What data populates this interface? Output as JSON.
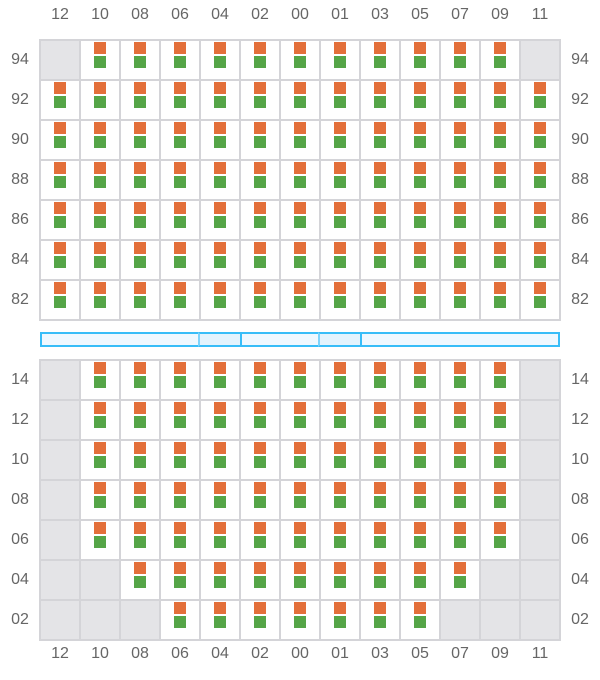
{
  "columns": [
    "12",
    "10",
    "08",
    "06",
    "04",
    "02",
    "00",
    "01",
    "03",
    "05",
    "07",
    "09",
    "11"
  ],
  "colors": {
    "orange": "#e36f3a",
    "green": "#55a547",
    "empty": "#e4e4e7",
    "divider": "#38bdf8"
  },
  "top_section": {
    "rows": [
      {
        "label": "94",
        "available": [
          0,
          1,
          1,
          1,
          1,
          1,
          1,
          1,
          1,
          1,
          1,
          1,
          0
        ]
      },
      {
        "label": "92",
        "available": [
          1,
          1,
          1,
          1,
          1,
          1,
          1,
          1,
          1,
          1,
          1,
          1,
          1
        ]
      },
      {
        "label": "90",
        "available": [
          1,
          1,
          1,
          1,
          1,
          1,
          1,
          1,
          1,
          1,
          1,
          1,
          1
        ]
      },
      {
        "label": "88",
        "available": [
          1,
          1,
          1,
          1,
          1,
          1,
          1,
          1,
          1,
          1,
          1,
          1,
          1
        ]
      },
      {
        "label": "86",
        "available": [
          1,
          1,
          1,
          1,
          1,
          1,
          1,
          1,
          1,
          1,
          1,
          1,
          1
        ]
      },
      {
        "label": "84",
        "available": [
          1,
          1,
          1,
          1,
          1,
          1,
          1,
          1,
          1,
          1,
          1,
          1,
          1
        ]
      },
      {
        "label": "82",
        "available": [
          1,
          1,
          1,
          1,
          1,
          1,
          1,
          1,
          1,
          1,
          1,
          1,
          1
        ]
      }
    ]
  },
  "bottom_section": {
    "rows": [
      {
        "label": "14",
        "available": [
          0,
          1,
          1,
          1,
          1,
          1,
          1,
          1,
          1,
          1,
          1,
          1,
          0
        ]
      },
      {
        "label": "12",
        "available": [
          0,
          1,
          1,
          1,
          1,
          1,
          1,
          1,
          1,
          1,
          1,
          1,
          0
        ]
      },
      {
        "label": "10",
        "available": [
          0,
          1,
          1,
          1,
          1,
          1,
          1,
          1,
          1,
          1,
          1,
          1,
          0
        ]
      },
      {
        "label": "08",
        "available": [
          0,
          1,
          1,
          1,
          1,
          1,
          1,
          1,
          1,
          1,
          1,
          1,
          0
        ]
      },
      {
        "label": "06",
        "available": [
          0,
          1,
          1,
          1,
          1,
          1,
          1,
          1,
          1,
          1,
          1,
          1,
          0
        ]
      },
      {
        "label": "04",
        "available": [
          0,
          0,
          1,
          1,
          1,
          1,
          1,
          1,
          1,
          1,
          1,
          0,
          0
        ]
      },
      {
        "label": "02",
        "available": [
          0,
          0,
          0,
          1,
          1,
          1,
          1,
          1,
          1,
          1,
          0,
          0,
          0
        ]
      }
    ]
  },
  "divider_segments": [
    "normal",
    "highlight",
    "normal",
    "highlight",
    "normal"
  ]
}
